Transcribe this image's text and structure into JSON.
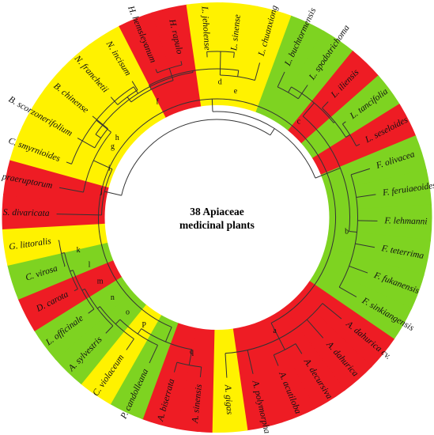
{
  "title": {
    "line1": "38 Apiaceae",
    "line2": "medicinal plants"
  },
  "colors": {
    "red": "#ee1c24",
    "yellow": "#fff200",
    "green": "#7ed321",
    "line": "#333333"
  },
  "taxa": [
    {
      "label": "S. divaricata",
      "color": "red"
    },
    {
      "label": "P. praeruptorum",
      "color": "red"
    },
    {
      "label": "C. smyrnioides",
      "color": "yellow"
    },
    {
      "label": "B. scorzonerifolium",
      "color": "yellow"
    },
    {
      "label": "B. chinense",
      "color": "yellow"
    },
    {
      "label": "N. franchetii",
      "color": "yellow"
    },
    {
      "label": "N. incisum",
      "color": "yellow"
    },
    {
      "label": "H. hemsleyanum",
      "color": "red"
    },
    {
      "label": "H. rapulo",
      "color": "red"
    },
    {
      "label": "L. jeholense",
      "color": "yellow"
    },
    {
      "label": "L. sinense",
      "color": "yellow"
    },
    {
      "label": "L. chuanxiong",
      "color": "yellow"
    },
    {
      "label": "L. buchtormensis",
      "color": "green"
    },
    {
      "label": "L. spodotrichoma",
      "color": "green"
    },
    {
      "label": "L. iliensis",
      "color": "red"
    },
    {
      "label": "L. tancifolia",
      "color": "green"
    },
    {
      "label": "L. seseloides",
      "color": "red"
    },
    {
      "label": "F. olivacea",
      "color": "green"
    },
    {
      "label": "F. feruiaeoides",
      "color": "green"
    },
    {
      "label": "F. lehmanni",
      "color": "green"
    },
    {
      "label": "F. teterrima",
      "color": "green"
    },
    {
      "label": "F. fukanensis",
      "color": "green"
    },
    {
      "label": "F. sinkiangensis",
      "color": "green"
    },
    {
      "label": "A. dahurica cv.",
      "color": "red"
    },
    {
      "label": "A. dahurica",
      "color": "red"
    },
    {
      "label": "A. decursiva",
      "color": "red"
    },
    {
      "label": "A. acutiloba",
      "color": "red"
    },
    {
      "label": "A. polymorpha",
      "color": "red"
    },
    {
      "label": "A. gigas",
      "color": "yellow"
    },
    {
      "label": "A. sinensis",
      "color": "red"
    },
    {
      "label": "A. biserrata",
      "color": "red"
    },
    {
      "label": "P. candolleana",
      "color": "green"
    },
    {
      "label": "C. violaceum",
      "color": "yellow"
    },
    {
      "label": "A. sylvestris",
      "color": "green"
    },
    {
      "label": "L. officinale",
      "color": "green"
    },
    {
      "label": "D. carota",
      "color": "red"
    },
    {
      "label": "C. virosa",
      "color": "green"
    },
    {
      "label": "G. littoralis",
      "color": "yellow"
    }
  ],
  "clades": [
    {
      "label": "a"
    },
    {
      "label": "b"
    },
    {
      "label": "c"
    },
    {
      "label": "d"
    },
    {
      "label": "e"
    },
    {
      "label": "f"
    },
    {
      "label": "g"
    },
    {
      "label": "h"
    },
    {
      "label": "i"
    },
    {
      "label": "j"
    },
    {
      "label": "k"
    },
    {
      "label": "l"
    },
    {
      "label": "m"
    },
    {
      "label": "n"
    },
    {
      "label": "o"
    },
    {
      "label": "P"
    },
    {
      "label": "q"
    }
  ]
}
